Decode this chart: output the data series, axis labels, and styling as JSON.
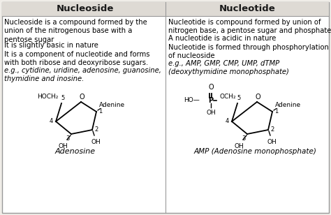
{
  "title_left": "Nucleoside",
  "title_right": "Nucleotide",
  "bg_color": "#f0ede8",
  "header_bg": "#dedad4",
  "border_color": "#999999",
  "text_color": "#1a1a1a",
  "left_texts": [
    "Nucleoside is a compound formed by the\nunion of the nitrogenous base with a\npentose sugar",
    "It is slightly basic in nature",
    "It is a component of nucleotide and forms\nwith both ribose and deoxyribose sugars.",
    "e.g., cytidine, uridine, adenosine, guanosine,\nthymidine and inosine."
  ],
  "right_texts": [
    "Nucleotide is compound formed by union of\nnitrogen base, a pentose sugar and phosphate.",
    "A nucleotide is acidic in nature",
    "Nucleotide is formed through phosphorylation\nof nucleoside",
    "e.g., AMP, GMP, CMP, UMP, dTMP\n(deoxythymidine monophosphate)"
  ],
  "caption_left": "Adenosine",
  "caption_right": "AMP (Adenosine monophosphate)",
  "figsize": [
    4.74,
    3.08
  ],
  "dpi": 100
}
